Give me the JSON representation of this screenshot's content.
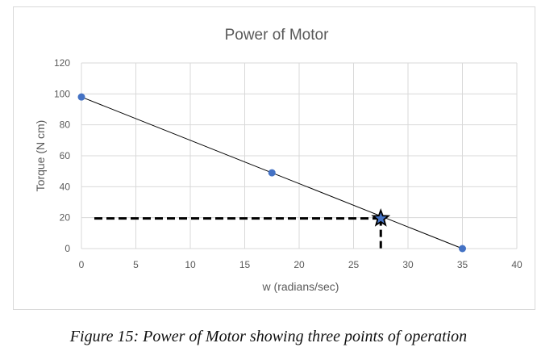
{
  "chart_data": {
    "type": "scatter",
    "title": "Power of Motor",
    "xlabel": "w (radians/sec)",
    "ylabel": "Torque (N cm)",
    "xlim": [
      0,
      40
    ],
    "ylim": [
      0,
      120
    ],
    "xticks": [
      0,
      5,
      10,
      15,
      20,
      25,
      30,
      35,
      40
    ],
    "yticks": [
      0,
      20,
      40,
      60,
      80,
      100,
      120
    ],
    "grid": true,
    "series": [
      {
        "points": [
          {
            "x": 0,
            "y": 98
          },
          {
            "x": 17.5,
            "y": 49
          },
          {
            "x": 35,
            "y": 0
          }
        ],
        "color": "#4472c4",
        "marker": "circle"
      }
    ],
    "trendline": {
      "from": {
        "x": 0,
        "y": 98
      },
      "to": {
        "x": 35,
        "y": 0
      },
      "color": "#000000"
    },
    "operating_point": {
      "x": 27.5,
      "y": 19.5,
      "marker": "star",
      "fill": "#4472c4",
      "stroke": "#000000"
    },
    "guide_lines": {
      "style": "dashed",
      "color": "#000000"
    }
  },
  "caption": "Figure 15: Power of Motor showing three points of operation"
}
